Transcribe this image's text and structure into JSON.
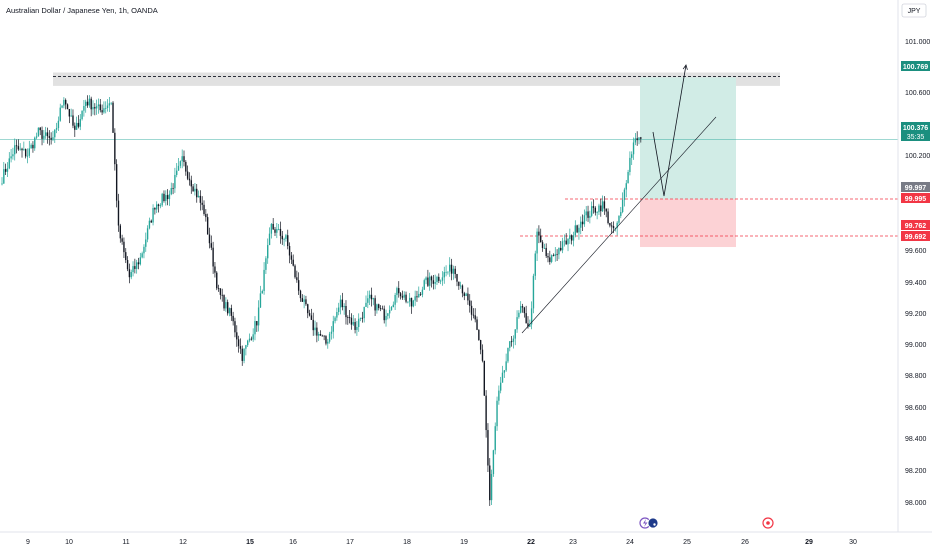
{
  "header": {
    "title": "Australian Dollar / Japanese Yen, 1h, OANDA",
    "currency_button": "JPY"
  },
  "colors": {
    "up": "#26a69a",
    "down": "#131722",
    "profit_zone": "#d1ece6",
    "loss_zone": "#fcd2d5",
    "resistance_band": "#dcdcdc",
    "current_price_label": "#1b8f7f",
    "stop_label": "#f23645",
    "entry_label": "#787b86"
  },
  "chart_data": {
    "type": "candlestick",
    "title": "Australian Dollar / Japanese Yen, 1h, OANDA",
    "currency": "JPY",
    "x_tick_labels": [
      "9",
      "10",
      "11",
      "12",
      "15",
      "16",
      "17",
      "18",
      "19",
      "22",
      "23",
      "24",
      "25",
      "26",
      "29",
      "30"
    ],
    "y_tick_labels": [
      "101.000",
      "100.600",
      "100.200",
      "99.600",
      "99.400",
      "99.200",
      "99.000",
      "98.800",
      "98.600",
      "98.400",
      "98.200",
      "98.000"
    ],
    "ylim": [
      97.86,
      101.18
    ],
    "price_labels": {
      "target": "100.769",
      "current": "100.376",
      "countdown": "35:35",
      "entry": "99.997",
      "entry_secondary": "99.995",
      "stop": "99.762",
      "stop_secondary": "99.692"
    },
    "levels": {
      "resistance_top": 100.8,
      "resistance_bottom": 100.715,
      "resistance_dashed": 100.775,
      "target": 100.769,
      "current": 100.376,
      "entry": 99.997,
      "stop": 99.762,
      "stop_zone_bottom": 99.692
    },
    "anchors": [
      {
        "t": 0,
        "p": 100.13
      },
      {
        "t": 7,
        "p": 100.32
      },
      {
        "t": 14,
        "p": 100.28
      },
      {
        "t": 20,
        "p": 100.42
      },
      {
        "t": 28,
        "p": 100.36
      },
      {
        "t": 34,
        "p": 100.65
      },
      {
        "t": 40,
        "p": 100.42
      },
      {
        "t": 46,
        "p": 100.62
      },
      {
        "t": 54,
        "p": 100.56
      },
      {
        "t": 60,
        "p": 100.62
      },
      {
        "t": 64,
        "p": 99.8
      },
      {
        "t": 70,
        "p": 99.5
      },
      {
        "t": 76,
        "p": 99.62
      },
      {
        "t": 84,
        "p": 99.96
      },
      {
        "t": 92,
        "p": 100.03
      },
      {
        "t": 99,
        "p": 100.24
      },
      {
        "t": 105,
        "p": 100.08
      },
      {
        "t": 111,
        "p": 99.92
      },
      {
        "t": 119,
        "p": 99.4
      },
      {
        "t": 126,
        "p": 99.25
      },
      {
        "t": 132,
        "p": 99.0
      },
      {
        "t": 140,
        "p": 99.22
      },
      {
        "t": 148,
        "p": 99.82
      },
      {
        "t": 156,
        "p": 99.74
      },
      {
        "t": 163,
        "p": 99.42
      },
      {
        "t": 170,
        "p": 99.2
      },
      {
        "t": 178,
        "p": 99.08
      },
      {
        "t": 186,
        "p": 99.34
      },
      {
        "t": 194,
        "p": 99.18
      },
      {
        "t": 202,
        "p": 99.36
      },
      {
        "t": 210,
        "p": 99.26
      },
      {
        "t": 218,
        "p": 99.42
      },
      {
        "t": 225,
        "p": 99.32
      },
      {
        "t": 232,
        "p": 99.46
      },
      {
        "t": 240,
        "p": 99.5
      },
      {
        "t": 248,
        "p": 99.56
      },
      {
        "t": 254,
        "p": 99.4
      },
      {
        "t": 260,
        "p": 99.2
      },
      {
        "t": 264,
        "p": 98.98
      },
      {
        "t": 268,
        "p": 98.08
      },
      {
        "t": 272,
        "p": 98.7
      },
      {
        "t": 278,
        "p": 99.02
      },
      {
        "t": 285,
        "p": 99.3
      },
      {
        "t": 290,
        "p": 99.18
      },
      {
        "t": 294,
        "p": 99.78
      },
      {
        "t": 300,
        "p": 99.6
      },
      {
        "t": 306,
        "p": 99.68
      },
      {
        "t": 312,
        "p": 99.74
      },
      {
        "t": 318,
        "p": 99.86
      },
      {
        "t": 324,
        "p": 99.92
      },
      {
        "t": 330,
        "p": 99.96
      },
      {
        "t": 336,
        "p": 99.78
      },
      {
        "t": 340,
        "p": 99.9
      },
      {
        "t": 344,
        "p": 100.2
      },
      {
        "t": 348,
        "p": 100.4
      },
      {
        "t": 351,
        "p": 100.37
      }
    ],
    "annotations": {
      "trendline": [
        {
          "x": 522,
          "y": 333
        },
        {
          "x": 716,
          "y": 117
        }
      ],
      "arrow_path": [
        {
          "x": 653,
          "y": 132
        },
        {
          "x": 664,
          "y": 196
        },
        {
          "x": 686,
          "y": 65
        }
      ]
    }
  }
}
